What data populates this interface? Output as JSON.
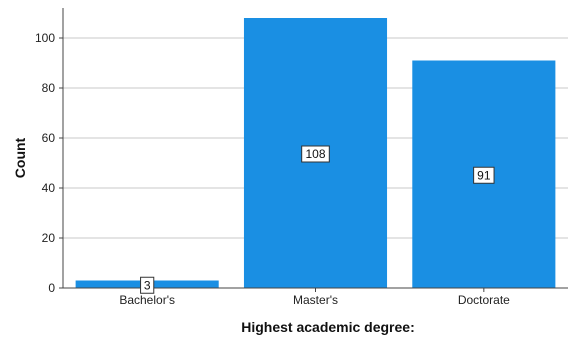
{
  "chart_data": {
    "type": "bar",
    "categories": [
      "Bachelor's",
      "Master's",
      "Doctorate"
    ],
    "values": [
      3,
      108,
      91
    ],
    "data_labels": [
      "3",
      "108",
      "91"
    ],
    "xlabel": "Highest academic degree:",
    "ylabel": "Count",
    "ylim": [
      0,
      112
    ],
    "yticks": [
      0,
      20,
      40,
      60,
      80,
      100
    ],
    "grid": "horizontal",
    "bar_color": "#1a8fe3",
    "legend": "none"
  }
}
